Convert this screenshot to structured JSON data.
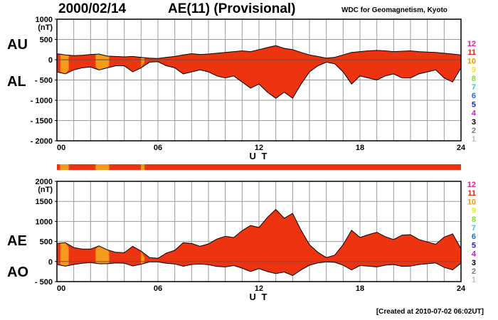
{
  "header": {
    "date": "2000/02/14",
    "index_title": "AE(11) (Provisional)",
    "source": "WDC for Geomagnetism, Kyoto"
  },
  "footer": {
    "created": "[Created at 2010-07-02 06:02UT]"
  },
  "colors": {
    "fill_main": "#ee3311",
    "fill_low": "#f59a1a",
    "outline": "#000000",
    "grid": "#999999",
    "strip": "#ee3311"
  },
  "chart_data": [
    {
      "type": "area",
      "panel": "top",
      "side_labels": [
        "AU",
        "AL"
      ],
      "ylabel": "(nT)",
      "xlabel": "U T",
      "xlim": [
        0,
        24
      ],
      "ylim": [
        -2000,
        1000
      ],
      "yticks": [
        1000,
        500,
        0,
        -500,
        -1000,
        -1500,
        -2000
      ],
      "ytick_labels": [
        "1000",
        "500",
        "0",
        "- 500",
        "- 1000",
        "- 1500",
        "- 2000"
      ],
      "xticks": [
        0,
        6,
        12,
        18,
        24
      ],
      "xtick_labels": [
        "00",
        "06",
        "12",
        "18",
        "24"
      ],
      "grid": true,
      "x": [
        0,
        0.5,
        1,
        1.5,
        2,
        2.5,
        3,
        3.5,
        4,
        4.5,
        5,
        5.5,
        6,
        6.5,
        7,
        7.5,
        8,
        8.5,
        9,
        9.5,
        10,
        10.5,
        11,
        11.5,
        12,
        12.5,
        13,
        13.5,
        14,
        14.5,
        15,
        15.5,
        16,
        16.5,
        17,
        17.5,
        18,
        18.5,
        19,
        19.5,
        20,
        20.5,
        21,
        21.5,
        22,
        22.5,
        23,
        23.5,
        24
      ],
      "series": [
        {
          "name": "AU",
          "values": [
            150,
            120,
            100,
            110,
            130,
            140,
            90,
            80,
            70,
            80,
            60,
            40,
            30,
            60,
            80,
            120,
            150,
            130,
            140,
            160,
            180,
            200,
            220,
            200,
            250,
            300,
            350,
            280,
            250,
            180,
            120,
            80,
            40,
            60,
            120,
            180,
            200,
            220,
            230,
            220,
            200,
            210,
            220,
            200,
            190,
            180,
            160,
            140,
            120
          ]
        },
        {
          "name": "AL",
          "values": [
            -300,
            -350,
            -250,
            -200,
            -180,
            -250,
            -200,
            -150,
            -150,
            -300,
            -200,
            -60,
            -50,
            -150,
            -200,
            -350,
            -300,
            -250,
            -300,
            -400,
            -450,
            -400,
            -550,
            -700,
            -600,
            -800,
            -950,
            -800,
            -950,
            -600,
            -300,
            -150,
            -60,
            -100,
            -300,
            -600,
            -400,
            -450,
            -500,
            -400,
            -350,
            -450,
            -450,
            -350,
            -300,
            -250,
            -450,
            -550,
            -200
          ]
        }
      ]
    },
    {
      "type": "area",
      "panel": "bottom",
      "side_labels": [
        "AE",
        "AO"
      ],
      "ylabel": "(nT)",
      "xlabel": "U T",
      "xlim": [
        0,
        24
      ],
      "ylim": [
        -500,
        2000
      ],
      "yticks": [
        2000,
        1500,
        1000,
        500,
        0,
        -500
      ],
      "ytick_labels": [
        "2000",
        "1500",
        "1000",
        "500",
        "0",
        "- 500"
      ],
      "xticks": [
        0,
        6,
        12,
        18,
        24
      ],
      "xtick_labels": [
        "00",
        "06",
        "12",
        "18",
        "24"
      ],
      "grid": true,
      "x": [
        0,
        0.5,
        1,
        1.5,
        2,
        2.5,
        3,
        3.5,
        4,
        4.5,
        5,
        5.5,
        6,
        6.5,
        7,
        7.5,
        8,
        8.5,
        9,
        9.5,
        10,
        10.5,
        11,
        11.5,
        12,
        12.5,
        13,
        13.5,
        14,
        14.5,
        15,
        15.5,
        16,
        16.5,
        17,
        17.5,
        18,
        18.5,
        19,
        19.5,
        20,
        20.5,
        21,
        21.5,
        22,
        22.5,
        23,
        23.5,
        24
      ],
      "series": [
        {
          "name": "AE",
          "values": [
            450,
            470,
            350,
            310,
            310,
            390,
            290,
            230,
            220,
            380,
            260,
            100,
            80,
            210,
            280,
            470,
            450,
            380,
            440,
            560,
            630,
            600,
            770,
            900,
            850,
            1100,
            1300,
            1080,
            1200,
            780,
            420,
            230,
            100,
            160,
            420,
            780,
            600,
            670,
            730,
            620,
            550,
            660,
            670,
            550,
            490,
            430,
            610,
            690,
            320
          ]
        },
        {
          "name": "AO",
          "values": [
            -75,
            -115,
            -75,
            -45,
            -25,
            -55,
            -55,
            -35,
            -40,
            -110,
            -70,
            -10,
            -10,
            -45,
            -60,
            -115,
            -75,
            -60,
            -80,
            -120,
            -135,
            -100,
            -165,
            -250,
            -175,
            -250,
            -300,
            -260,
            -350,
            -210,
            -90,
            -35,
            -10,
            -20,
            -90,
            -210,
            -100,
            -115,
            -135,
            -90,
            -75,
            -120,
            -115,
            -75,
            -55,
            -35,
            -145,
            -205,
            -40
          ]
        }
      ]
    }
  ],
  "kp_strip": {
    "segments": [
      {
        "from": 0,
        "to": 0.2,
        "level": 11
      },
      {
        "from": 0.2,
        "to": 0.7,
        "level": 10
      },
      {
        "from": 0.7,
        "to": 2.3,
        "level": 11
      },
      {
        "from": 2.3,
        "to": 3.1,
        "level": 10
      },
      {
        "from": 3.1,
        "to": 5.0,
        "level": 11
      },
      {
        "from": 5.0,
        "to": 5.2,
        "level": 10
      },
      {
        "from": 5.2,
        "to": 24,
        "level": 11
      }
    ]
  },
  "legend": {
    "levels": [
      {
        "label": "12",
        "color": "#e0208a"
      },
      {
        "label": "11",
        "color": "#e02a10"
      },
      {
        "label": "10",
        "color": "#f09a10"
      },
      {
        "label": "9",
        "color": "#e6e620"
      },
      {
        "label": "8",
        "color": "#80e020"
      },
      {
        "label": "7",
        "color": "#20d0e0"
      },
      {
        "label": "6",
        "color": "#1070e0"
      },
      {
        "label": "5",
        "color": "#2020d0"
      },
      {
        "label": "4",
        "color": "#c020d0"
      },
      {
        "label": "3",
        "color": "#000000"
      },
      {
        "label": "2",
        "color": "#777777"
      },
      {
        "label": "1",
        "color": "#bbbbbb"
      }
    ]
  }
}
